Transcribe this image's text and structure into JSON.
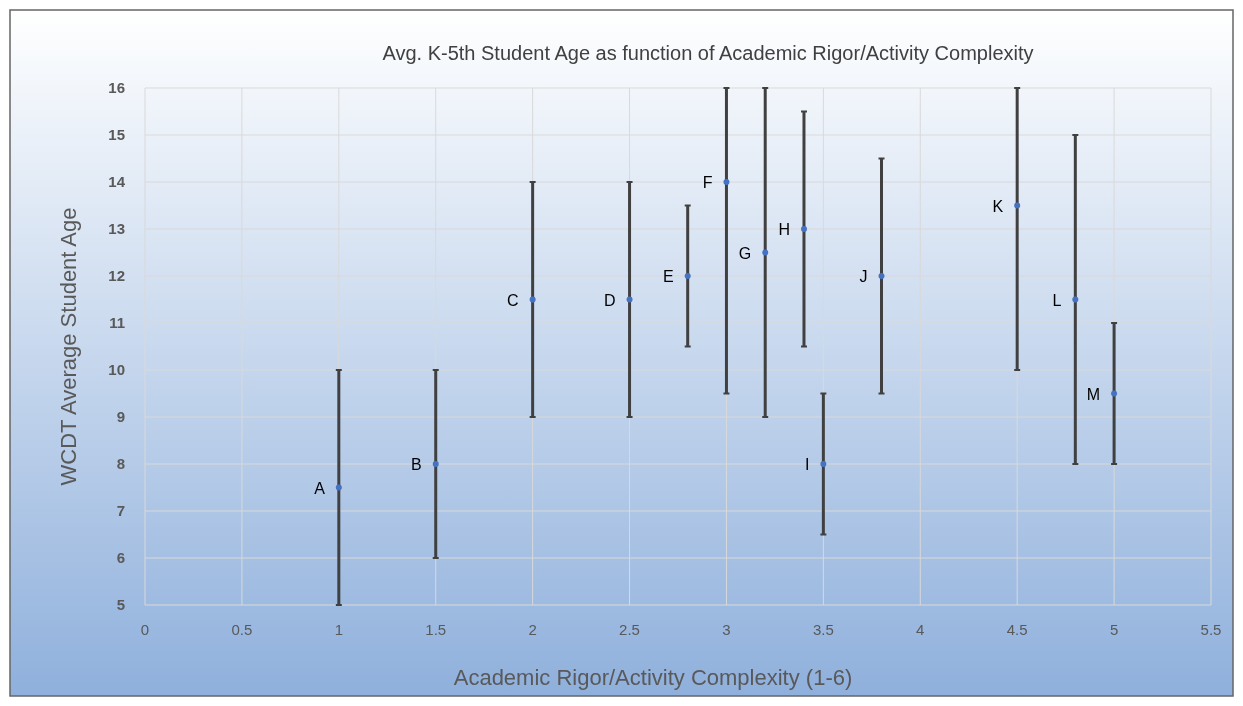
{
  "chart_data": {
    "type": "scatter",
    "title": "Avg. K-5th Student Age as function of Academic Rigor/Activity Complexity",
    "xlabel": "Academic Rigor/Activity Complexity (1-6)",
    "ylabel": "WCDT Average Student Age",
    "x": [
      1,
      1.5,
      2,
      2.5,
      2.8,
      3,
      3.2,
      3.4,
      3.5,
      3.8,
      4.5,
      4.8,
      5
    ],
    "series": [
      {
        "color": "#4472c4",
        "values": [
          7.5,
          8,
          11.5,
          11.5,
          12,
          14,
          12.5,
          13,
          8,
          12,
          13.5,
          11.5,
          9.5
        ],
        "errors": [
          [
            5,
            10
          ],
          [
            6,
            10
          ],
          [
            9,
            14
          ],
          [
            9,
            14
          ],
          [
            10.5,
            13.5
          ],
          [
            9.5,
            16
          ],
          [
            9,
            16
          ],
          [
            10.5,
            15.5
          ],
          [
            6.5,
            9.5
          ],
          [
            9.5,
            14.5
          ],
          [
            10,
            16
          ],
          [
            8,
            15
          ],
          [
            8,
            11
          ]
        ]
      }
    ],
    "annotations": [
      {
        "text": "A",
        "x": 1,
        "y": 7.5
      },
      {
        "text": "B",
        "x": 1.5,
        "y": 8
      },
      {
        "text": "C",
        "x": 2,
        "y": 11.5
      },
      {
        "text": "D",
        "x": 2.5,
        "y": 11.5
      },
      {
        "text": "E",
        "x": 2.8,
        "y": 12
      },
      {
        "text": "F",
        "x": 3,
        "y": 14
      },
      {
        "text": "G",
        "x": 3.2,
        "y": 12.5
      },
      {
        "text": "H",
        "x": 3.4,
        "y": 13
      },
      {
        "text": "I",
        "x": 3.5,
        "y": 8
      },
      {
        "text": "J",
        "x": 3.8,
        "y": 12
      },
      {
        "text": "K",
        "x": 4.5,
        "y": 13.5
      },
      {
        "text": "L",
        "x": 4.8,
        "y": 11.5
      },
      {
        "text": "M",
        "x": 5,
        "y": 9.5
      }
    ],
    "xlim": [
      0,
      5.5
    ],
    "xticks": [
      0,
      0.5,
      1,
      1.5,
      2,
      2.5,
      3,
      3.5,
      4,
      4.5,
      5,
      5.5
    ],
    "ylim": [
      5,
      16
    ],
    "yticks": [
      5,
      6,
      7,
      8,
      9,
      10,
      11,
      12,
      13,
      14,
      15,
      16
    ],
    "grid": true,
    "marker": "circle"
  }
}
